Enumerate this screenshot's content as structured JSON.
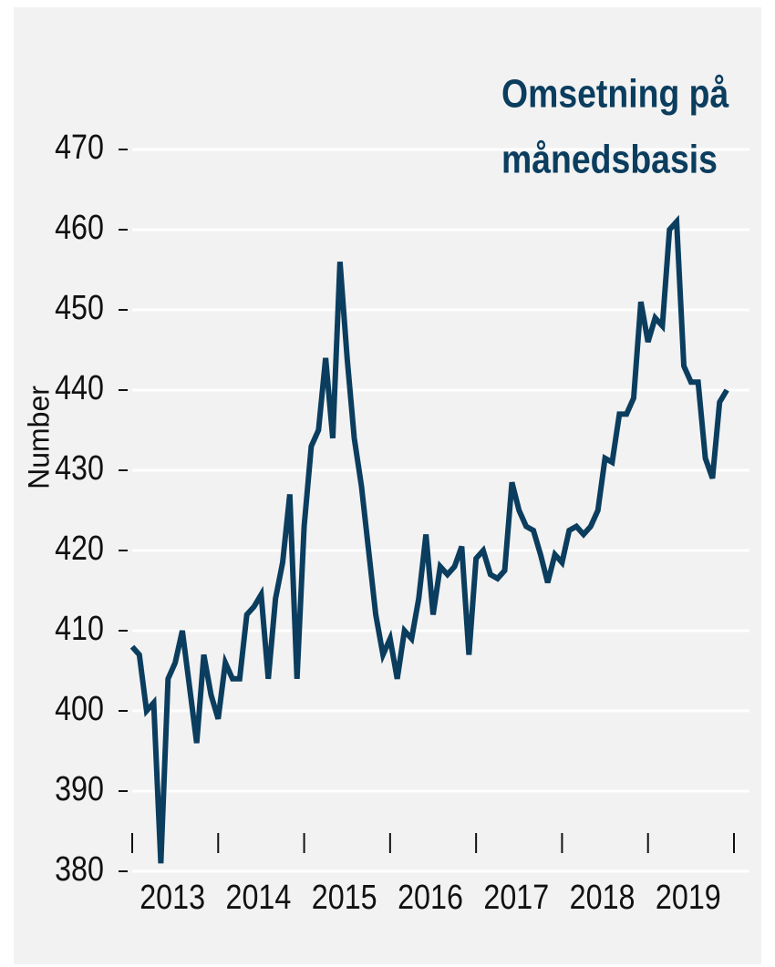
{
  "chart_data": {
    "type": "line",
    "ylabel": "Number",
    "annotation": [
      "Omsetning på",
      "månedsbasis"
    ],
    "categories": [
      "2013",
      "2014",
      "2015",
      "2016",
      "2017",
      "2018",
      "2019"
    ],
    "x": [
      2013.0,
      2013.083,
      2013.167,
      2013.25,
      2013.333,
      2013.417,
      2013.5,
      2013.583,
      2013.667,
      2013.75,
      2013.833,
      2013.917,
      2014.0,
      2014.083,
      2014.167,
      2014.25,
      2014.333,
      2014.417,
      2014.5,
      2014.583,
      2014.667,
      2014.75,
      2014.833,
      2014.917,
      2015.0,
      2015.083,
      2015.167,
      2015.25,
      2015.333,
      2015.417,
      2015.5,
      2015.583,
      2015.667,
      2015.75,
      2015.833,
      2015.917,
      2016.0,
      2016.083,
      2016.167,
      2016.25,
      2016.333,
      2016.417,
      2016.5,
      2016.583,
      2016.667,
      2016.75,
      2016.833,
      2016.917,
      2017.0,
      2017.083,
      2017.167,
      2017.25,
      2017.333,
      2017.417,
      2017.5,
      2017.583,
      2017.667,
      2017.75,
      2017.833,
      2017.917,
      2018.0,
      2018.083,
      2018.167,
      2018.25,
      2018.333,
      2018.417,
      2018.5,
      2018.583,
      2018.667,
      2018.75,
      2018.833,
      2018.917,
      2019.0,
      2019.083,
      2019.167,
      2019.25,
      2019.333,
      2019.417,
      2019.5,
      2019.583,
      2019.667,
      2019.75,
      2019.833,
      2019.917
    ],
    "series": [
      {
        "name": "Omsetning på månedsbasis",
        "color": "#0b3d5e",
        "values": [
          408,
          407,
          400,
          401,
          381,
          404,
          406,
          410,
          403,
          396,
          407,
          402,
          399,
          406,
          404,
          404,
          412,
          413,
          414.5,
          404,
          414,
          418.5,
          427,
          404,
          423,
          433,
          435,
          444,
          434,
          456,
          444,
          434,
          428,
          420,
          412,
          407,
          409,
          404,
          410,
          409,
          414,
          422,
          412,
          418,
          417,
          418,
          420.5,
          407,
          419,
          420,
          417,
          416.5,
          417.5,
          428.5,
          425,
          423,
          422.5,
          419.5,
          416,
          419.5,
          418.5,
          422.5,
          423,
          422,
          423,
          425,
          431.5,
          431,
          437,
          437,
          439,
          451,
          446,
          449,
          448,
          460,
          461,
          443,
          441,
          441,
          431.5,
          429,
          438.5,
          440
        ]
      }
    ],
    "xlim": [
      2012.98,
      2020.02
    ],
    "xticks": [
      2013,
      2014,
      2015,
      2016,
      2017,
      2018,
      2019,
      2020
    ],
    "ylim": [
      377,
      472
    ],
    "yticks": [
      380,
      390,
      400,
      410,
      420,
      430,
      440,
      450,
      460,
      470
    ],
    "grid": true
  }
}
